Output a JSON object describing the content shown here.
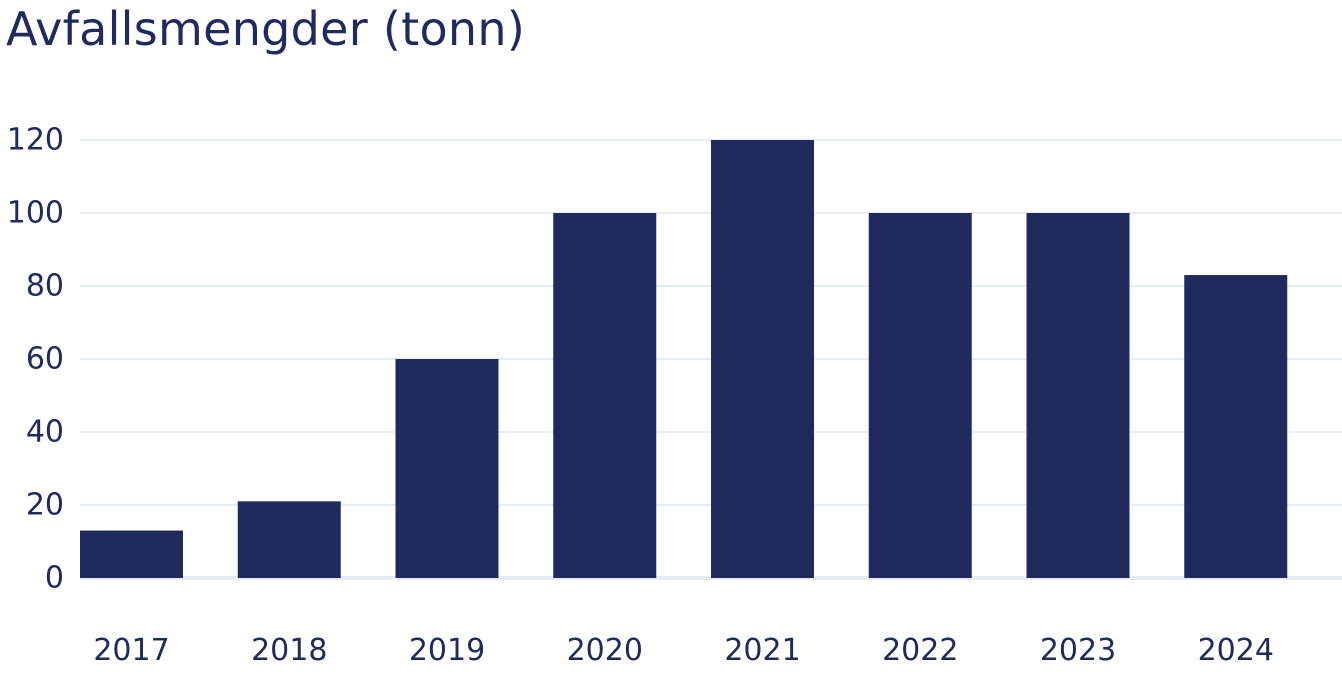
{
  "chart_data": {
    "type": "bar",
    "title": "Avfallsmengder (tonn)",
    "xlabel": "",
    "ylabel": "",
    "categories": [
      "2017",
      "2018",
      "2019",
      "2020",
      "2021",
      "2022",
      "2023",
      "2024"
    ],
    "values": [
      13,
      21,
      60,
      100,
      120,
      100,
      100,
      83
    ],
    "ylim": [
      0,
      120
    ],
    "yticks": [
      0,
      20,
      40,
      60,
      80,
      100,
      120
    ],
    "grid": true,
    "legend": "none",
    "colors": {
      "bar": "#202a5c",
      "grid": "#e6edf7",
      "text": "#202a5c"
    }
  }
}
